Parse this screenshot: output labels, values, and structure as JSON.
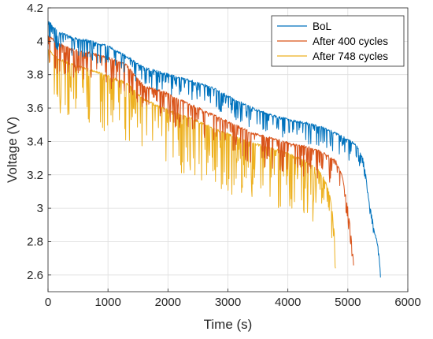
{
  "chart_data": {
    "type": "line",
    "xlabel": "Time (s)",
    "ylabel": "Voltage (V)",
    "xlim": [
      0,
      6000
    ],
    "ylim": [
      2.5,
      4.2
    ],
    "xticks": [
      "0",
      "1000",
      "2000",
      "3000",
      "4000",
      "5000",
      "6000"
    ],
    "yticks": [
      "2.6",
      "2.8",
      "3",
      "3.2",
      "3.4",
      "3.6",
      "3.8",
      "4",
      "4.2"
    ],
    "grid": true,
    "legend_position": "top-right",
    "series": [
      {
        "name": "BoL",
        "color": "#0072BD",
        "x": [
          0,
          150,
          400,
          700,
          1000,
          1300,
          1600,
          1900,
          2200,
          2500,
          2800,
          3100,
          3400,
          3700,
          4000,
          4300,
          4600,
          4900,
          5050,
          5150,
          5250,
          5300,
          5350,
          5400,
          5450,
          5500,
          5550
        ],
        "y": [
          4.13,
          4.06,
          4.02,
          4.0,
          3.97,
          3.91,
          3.84,
          3.81,
          3.78,
          3.75,
          3.71,
          3.65,
          3.6,
          3.56,
          3.53,
          3.51,
          3.48,
          3.43,
          3.4,
          3.37,
          3.3,
          3.2,
          3.05,
          2.95,
          2.85,
          2.78,
          2.6
        ],
        "dip_depth": 0.12
      },
      {
        "name": "After 400 cycles",
        "color": "#D95319",
        "x": [
          0,
          150,
          400,
          700,
          1000,
          1300,
          1600,
          1900,
          2200,
          2500,
          2800,
          3100,
          3400,
          3700,
          4000,
          4300,
          4600,
          4800,
          4900,
          4950,
          5000,
          5050,
          5100
        ],
        "y": [
          4.04,
          3.99,
          3.95,
          3.93,
          3.9,
          3.86,
          3.73,
          3.7,
          3.65,
          3.6,
          3.55,
          3.5,
          3.45,
          3.42,
          3.39,
          3.37,
          3.33,
          3.28,
          3.2,
          3.1,
          3.0,
          2.85,
          2.65
        ],
        "dip_depth": 0.18
      },
      {
        "name": "After 748 cycles",
        "color": "#EDB120",
        "x": [
          0,
          150,
          400,
          700,
          1000,
          1300,
          1600,
          1900,
          2200,
          2500,
          2800,
          3100,
          3400,
          3700,
          4000,
          4300,
          4500,
          4600,
          4700,
          4750,
          4800
        ],
        "y": [
          3.95,
          3.9,
          3.86,
          3.83,
          3.79,
          3.75,
          3.65,
          3.6,
          3.56,
          3.52,
          3.47,
          3.43,
          3.39,
          3.36,
          3.33,
          3.28,
          3.23,
          3.18,
          3.08,
          2.95,
          2.75
        ],
        "dip_depth": 0.35
      }
    ]
  }
}
